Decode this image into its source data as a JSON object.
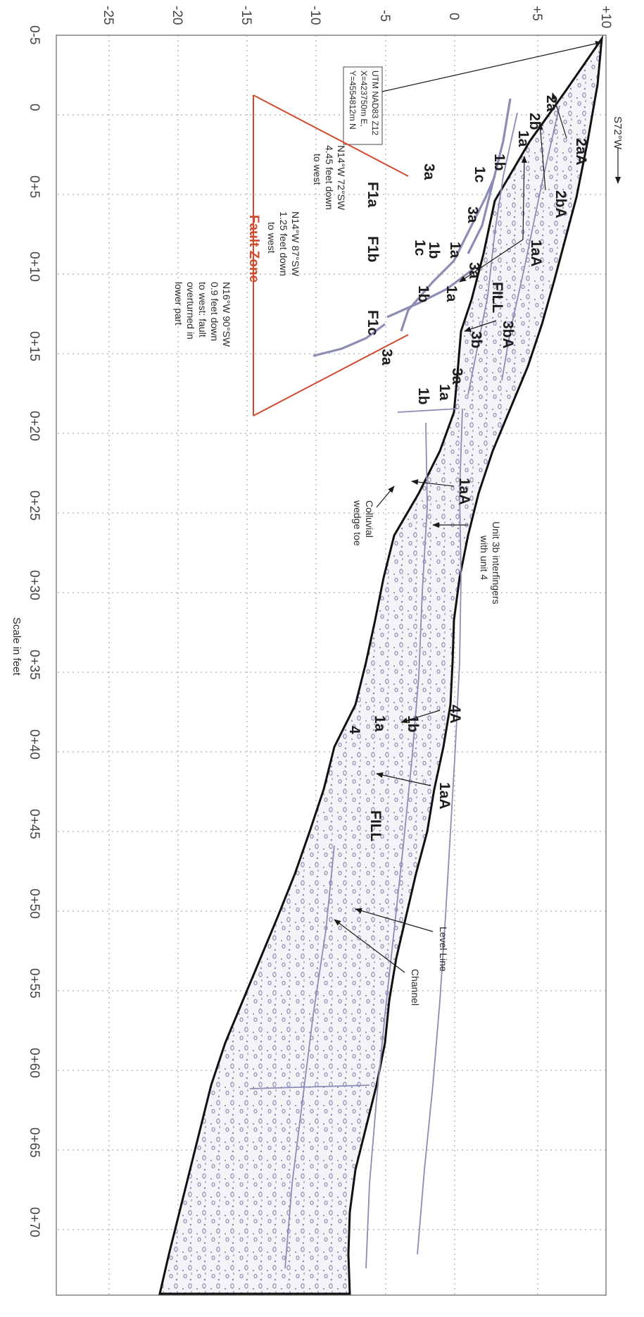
{
  "x_ticks": [
    "0-5",
    "0",
    "0+5",
    "0+10",
    "0+15",
    "0+20",
    "0+25",
    "0+30",
    "0+35",
    "0+40",
    "0+45",
    "0+50",
    "0+55",
    "0+60",
    "0+65",
    "0+70"
  ],
  "y_ticks": [
    "+10",
    "+5",
    "0",
    "-5",
    "-10",
    "-15",
    "-20",
    "-25"
  ],
  "scale_label": "Scale in feet",
  "direction_label": "S72°W",
  "utm": {
    "line1": "UTM NAD83 Z12",
    "line2": "X=423750m E,",
    "line3": "Y=4554812m N"
  },
  "fault_zone_label": "Fault Zone",
  "faults": {
    "f1a": {
      "name": "F1a",
      "line1": "N14°W 72°SW",
      "line2": "4.45 feet down",
      "line3": "to west"
    },
    "f1b": {
      "name": "F1b",
      "line1": "N14°W 87°SW",
      "line2": "1.25 feet down",
      "line3": "to west"
    },
    "f1c": {
      "name": "F1c",
      "line1": "N16°W 90°SW",
      "line2": "0.9 feet down",
      "line3": "to west: fault",
      "line4": "overturned in",
      "line5": "lower part"
    }
  },
  "units": {
    "u2a": "2a",
    "u2b": "2b",
    "u1a": "1a",
    "u1b": "1b",
    "u1c": "1c",
    "u3a": "3a",
    "u3b": "3b",
    "u4": "4",
    "fill": "FILL",
    "u2aA": "2aA",
    "u2bA": "2bA",
    "u1aA": "1aA",
    "u3bA": "3bA",
    "u4A": "4A"
  },
  "notes": {
    "unit3b_line1": "Unit 3b interfingers",
    "unit3b_line2": "with unit 4",
    "colluvial_line1": "Colluvial",
    "colluvial_line2": "wedge toe",
    "level_line": "Level Line",
    "channel": "Channel"
  }
}
